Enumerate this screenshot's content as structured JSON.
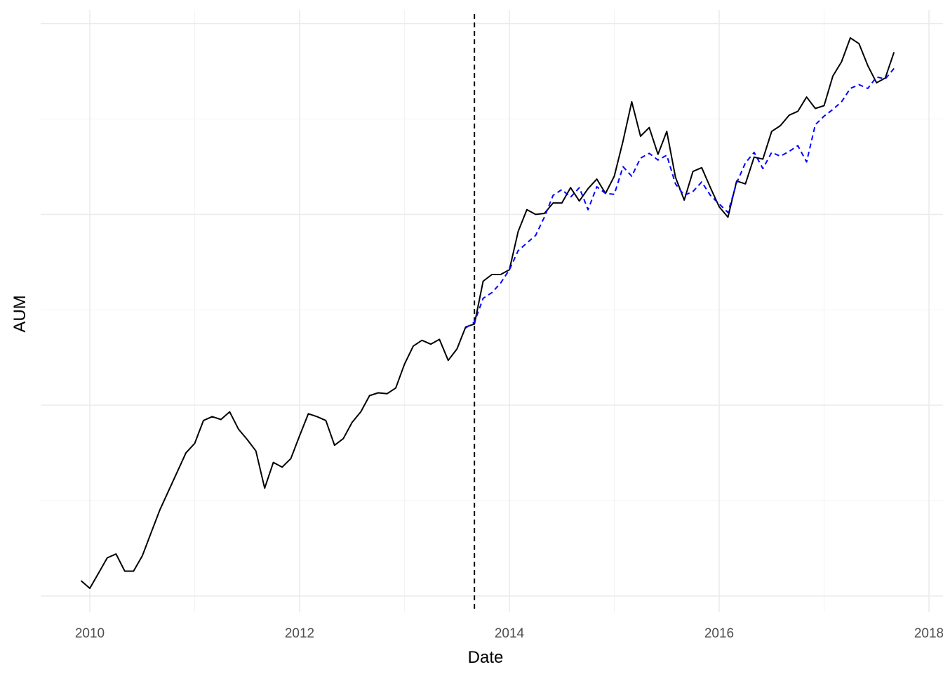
{
  "chart_data": {
    "type": "line",
    "title": "",
    "xlabel": "Date",
    "ylabel": "AUM",
    "x_ticks": [
      "2010",
      "2012",
      "2014",
      "2016",
      "2018"
    ],
    "xlim": [
      "2009-07-08",
      "2018-02-01"
    ],
    "y_ticks_labeled": false,
    "grid": true,
    "legend": "none",
    "vline": {
      "x": "2013-09-01",
      "style": "dashed",
      "color": "#000000"
    },
    "series": [
      {
        "style": "solid",
        "color": "#000000",
        "points": [
          [
            "2009-12-01",
            1.16
          ],
          [
            "2010-01-01",
            1.08
          ],
          [
            "2010-02-01",
            1.24
          ],
          [
            "2010-03-01",
            1.4
          ],
          [
            "2010-04-01",
            1.44
          ],
          [
            "2010-05-01",
            1.26
          ],
          [
            "2010-06-01",
            1.26
          ],
          [
            "2010-07-01",
            1.42
          ],
          [
            "2010-08-01",
            1.66
          ],
          [
            "2010-09-01",
            1.9
          ],
          [
            "2010-10-01",
            2.1
          ],
          [
            "2010-11-01",
            2.3
          ],
          [
            "2010-12-01",
            2.5
          ],
          [
            "2011-01-01",
            2.6
          ],
          [
            "2011-02-01",
            2.84
          ],
          [
            "2011-03-01",
            2.88
          ],
          [
            "2011-04-01",
            2.85
          ],
          [
            "2011-05-01",
            2.93
          ],
          [
            "2011-06-01",
            2.75
          ],
          [
            "2011-07-01",
            2.64
          ],
          [
            "2011-08-01",
            2.52
          ],
          [
            "2011-09-01",
            2.13
          ],
          [
            "2011-10-01",
            2.4
          ],
          [
            "2011-11-01",
            2.35
          ],
          [
            "2011-12-01",
            2.44
          ],
          [
            "2012-01-01",
            2.68
          ],
          [
            "2012-02-01",
            2.91
          ],
          [
            "2012-03-01",
            2.88
          ],
          [
            "2012-04-01",
            2.84
          ],
          [
            "2012-05-01",
            2.58
          ],
          [
            "2012-06-01",
            2.65
          ],
          [
            "2012-07-01",
            2.82
          ],
          [
            "2012-08-01",
            2.93
          ],
          [
            "2012-09-01",
            3.1
          ],
          [
            "2012-10-01",
            3.13
          ],
          [
            "2012-11-01",
            3.12
          ],
          [
            "2012-12-01",
            3.18
          ],
          [
            "2013-01-01",
            3.43
          ],
          [
            "2013-02-01",
            3.62
          ],
          [
            "2013-03-01",
            3.68
          ],
          [
            "2013-04-01",
            3.64
          ],
          [
            "2013-05-01",
            3.69
          ],
          [
            "2013-06-01",
            3.47
          ],
          [
            "2013-07-01",
            3.59
          ],
          [
            "2013-08-01",
            3.82
          ],
          [
            "2013-09-01",
            3.85
          ],
          [
            "2013-10-01",
            4.3
          ],
          [
            "2013-11-01",
            4.37
          ],
          [
            "2013-12-01",
            4.37
          ],
          [
            "2014-01-01",
            4.42
          ],
          [
            "2014-02-01",
            4.82
          ],
          [
            "2014-03-01",
            5.05
          ],
          [
            "2014-04-01",
            5.0
          ],
          [
            "2014-05-01",
            5.01
          ],
          [
            "2014-06-01",
            5.12
          ],
          [
            "2014-07-01",
            5.12
          ],
          [
            "2014-08-01",
            5.28
          ],
          [
            "2014-09-01",
            5.14
          ],
          [
            "2014-10-01",
            5.27
          ],
          [
            "2014-11-01",
            5.37
          ],
          [
            "2014-12-01",
            5.22
          ],
          [
            "2015-01-01",
            5.4
          ],
          [
            "2015-02-01",
            5.77
          ],
          [
            "2015-03-01",
            6.18
          ],
          [
            "2015-04-01",
            5.82
          ],
          [
            "2015-05-01",
            5.91
          ],
          [
            "2015-06-01",
            5.63
          ],
          [
            "2015-07-01",
            5.87
          ],
          [
            "2015-08-01",
            5.39
          ],
          [
            "2015-09-01",
            5.15
          ],
          [
            "2015-10-01",
            5.45
          ],
          [
            "2015-11-01",
            5.49
          ],
          [
            "2015-12-01",
            5.28
          ],
          [
            "2016-01-01",
            5.08
          ],
          [
            "2016-02-01",
            4.97
          ],
          [
            "2016-03-01",
            5.35
          ],
          [
            "2016-04-01",
            5.32
          ],
          [
            "2016-05-01",
            5.6
          ],
          [
            "2016-06-01",
            5.58
          ],
          [
            "2016-07-01",
            5.87
          ],
          [
            "2016-08-01",
            5.93
          ],
          [
            "2016-09-01",
            6.04
          ],
          [
            "2016-10-01",
            6.08
          ],
          [
            "2016-11-01",
            6.23
          ],
          [
            "2016-12-01",
            6.11
          ],
          [
            "2017-01-01",
            6.14
          ],
          [
            "2017-02-01",
            6.45
          ],
          [
            "2017-03-01",
            6.6
          ],
          [
            "2017-04-01",
            6.85
          ],
          [
            "2017-05-01",
            6.79
          ],
          [
            "2017-06-01",
            6.56
          ],
          [
            "2017-07-01",
            6.38
          ],
          [
            "2017-08-01",
            6.43
          ],
          [
            "2017-09-01",
            6.7
          ]
        ]
      },
      {
        "style": "dashed",
        "color": "#0000ff",
        "points": [
          [
            "2013-08-01",
            3.81
          ],
          [
            "2013-09-01",
            3.87
          ],
          [
            "2013-10-01",
            4.12
          ],
          [
            "2013-11-01",
            4.18
          ],
          [
            "2013-12-01",
            4.28
          ],
          [
            "2014-01-01",
            4.42
          ],
          [
            "2014-02-01",
            4.62
          ],
          [
            "2014-03-01",
            4.7
          ],
          [
            "2014-04-01",
            4.78
          ],
          [
            "2014-05-01",
            4.97
          ],
          [
            "2014-06-01",
            5.2
          ],
          [
            "2014-07-01",
            5.26
          ],
          [
            "2014-08-01",
            5.18
          ],
          [
            "2014-09-01",
            5.28
          ],
          [
            "2014-10-01",
            5.05
          ],
          [
            "2014-11-01",
            5.29
          ],
          [
            "2014-12-01",
            5.22
          ],
          [
            "2015-01-01",
            5.21
          ],
          [
            "2015-02-01",
            5.5
          ],
          [
            "2015-03-01",
            5.4
          ],
          [
            "2015-04-01",
            5.59
          ],
          [
            "2015-05-01",
            5.64
          ],
          [
            "2015-06-01",
            5.57
          ],
          [
            "2015-07-01",
            5.62
          ],
          [
            "2015-08-01",
            5.32
          ],
          [
            "2015-09-01",
            5.2
          ],
          [
            "2015-10-01",
            5.24
          ],
          [
            "2015-11-01",
            5.34
          ],
          [
            "2015-12-01",
            5.2
          ],
          [
            "2016-01-01",
            5.11
          ],
          [
            "2016-02-01",
            5.02
          ],
          [
            "2016-03-01",
            5.33
          ],
          [
            "2016-04-01",
            5.54
          ],
          [
            "2016-05-01",
            5.65
          ],
          [
            "2016-06-01",
            5.48
          ],
          [
            "2016-07-01",
            5.65
          ],
          [
            "2016-08-01",
            5.61
          ],
          [
            "2016-09-01",
            5.66
          ],
          [
            "2016-10-01",
            5.72
          ],
          [
            "2016-11-01",
            5.55
          ],
          [
            "2016-12-01",
            5.94
          ],
          [
            "2017-01-01",
            6.03
          ],
          [
            "2017-02-01",
            6.1
          ],
          [
            "2017-03-01",
            6.18
          ],
          [
            "2017-04-01",
            6.32
          ],
          [
            "2017-05-01",
            6.36
          ],
          [
            "2017-06-01",
            6.32
          ],
          [
            "2017-07-01",
            6.44
          ],
          [
            "2017-08-01",
            6.42
          ],
          [
            "2017-09-01",
            6.53
          ]
        ]
      }
    ]
  }
}
